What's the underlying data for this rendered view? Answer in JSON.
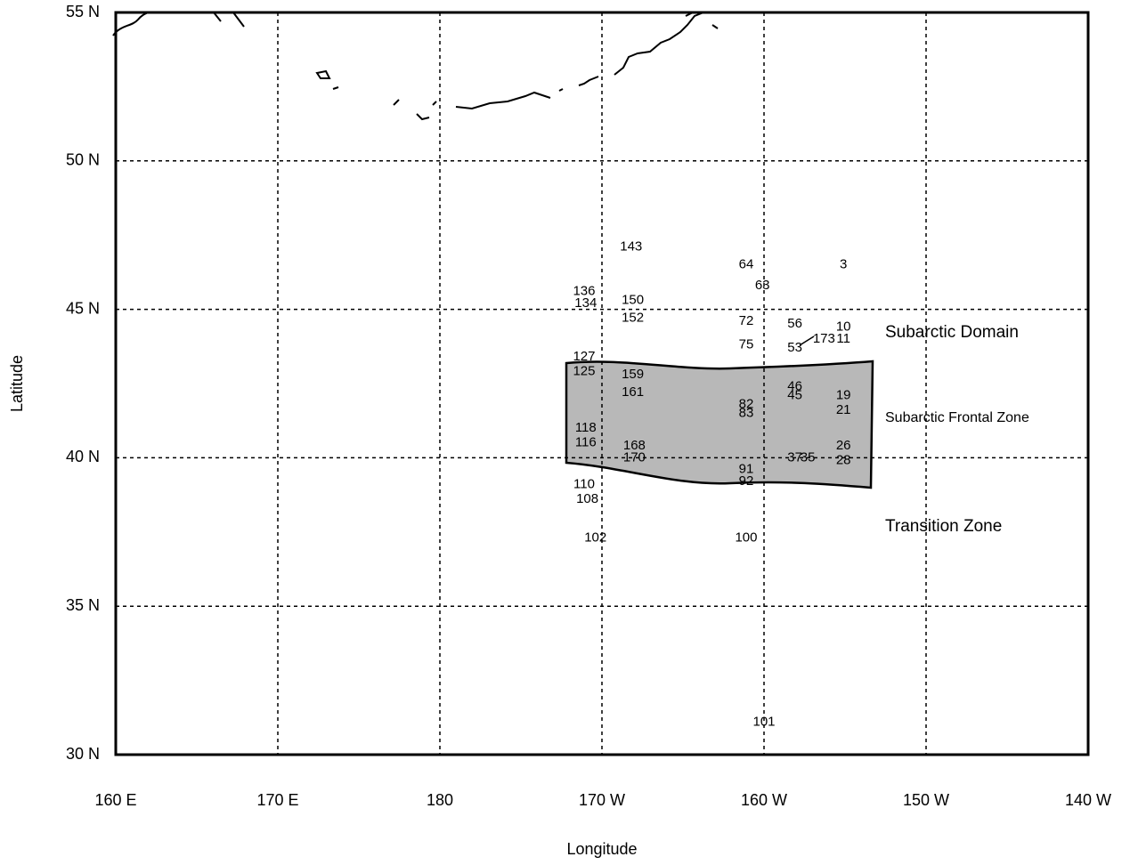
{
  "chart_data": {
    "type": "scatter",
    "xlabel": "Longitude",
    "ylabel": "Latitude",
    "xlim": [
      160,
      220
    ],
    "ylim": [
      30,
      55
    ],
    "xticks": [
      {
        "value": 160,
        "label": "160 E"
      },
      {
        "value": 170,
        "label": "170 E"
      },
      180,
      {
        "value": 190,
        "label": "170 W"
      },
      {
        "value": 200,
        "label": "160 W"
      },
      {
        "value": 210,
        "label": "150 W"
      },
      {
        "value": 220,
        "label": "140 W"
      }
    ],
    "yticks": [
      {
        "value": 30,
        "label": "30 N"
      },
      {
        "value": 35,
        "label": "35 N"
      },
      {
        "value": 40,
        "label": "40 N"
      },
      {
        "value": 45,
        "label": "45 N"
      },
      {
        "value": 50,
        "label": "50 N"
      },
      {
        "value": 55,
        "label": "55 N"
      }
    ],
    "grid": true,
    "series": [
      {
        "labels": [
          "143",
          "64",
          "3",
          "63",
          "136",
          "134",
          "150",
          "152",
          "72",
          "56",
          "10",
          "173",
          "11",
          "75",
          "53",
          "127",
          "125",
          "159",
          "161",
          "46",
          "45",
          "19",
          "21",
          "82",
          "83",
          "118",
          "116",
          "168",
          "170",
          "37",
          "35",
          "26",
          "28",
          "91",
          "92",
          "110",
          "108",
          "102",
          "100",
          "101"
        ],
        "x": [
          191.8,
          198.9,
          204.9,
          199.9,
          188.9,
          189.0,
          191.9,
          191.9,
          198.9,
          201.9,
          204.9,
          203.7,
          204.9,
          198.9,
          201.9,
          188.9,
          188.9,
          191.9,
          191.9,
          201.9,
          201.9,
          204.9,
          204.9,
          198.9,
          198.9,
          189.0,
          189.0,
          192.0,
          192.0,
          201.9,
          202.7,
          204.9,
          204.9,
          198.9,
          198.9,
          188.9,
          189.1,
          189.6,
          198.9,
          200.0
        ],
        "values": [
          47.1,
          46.5,
          46.5,
          45.8,
          45.6,
          45.2,
          45.3,
          44.7,
          44.6,
          44.5,
          44.4,
          44.0,
          44.0,
          43.8,
          43.7,
          43.4,
          42.9,
          42.8,
          42.2,
          42.4,
          42.1,
          42.1,
          41.6,
          41.8,
          41.5,
          41.0,
          40.5,
          40.4,
          40.0,
          40.0,
          40.0,
          40.4,
          39.9,
          39.6,
          39.2,
          39.1,
          38.6,
          37.3,
          37.3,
          31.1
        ]
      }
    ],
    "annotations": [
      "Subarctic Domain",
      "Subarctic Frontal Zone",
      "Transition Zone"
    ]
  }
}
